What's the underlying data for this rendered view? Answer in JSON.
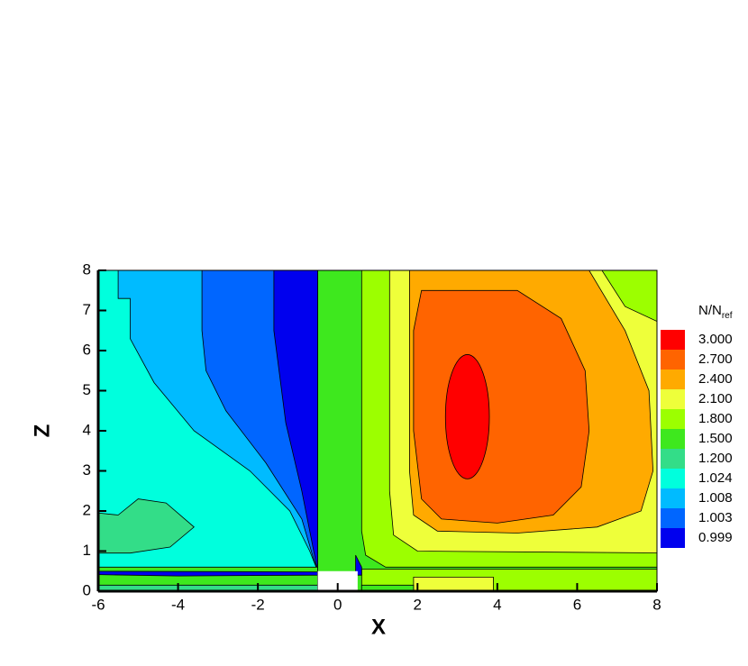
{
  "chart_data": {
    "type": "contour",
    "xlabel": "X",
    "ylabel": "Z",
    "xlim": [
      -6,
      8
    ],
    "ylim": [
      0,
      8
    ],
    "xticks": [
      -6,
      -4,
      -2,
      0,
      2,
      4,
      6,
      8
    ],
    "yticks": [
      0,
      1,
      2,
      3,
      4,
      5,
      6,
      7,
      8
    ],
    "legend": {
      "title": "N/N",
      "title_sub": "ref",
      "position": "right",
      "levels": [
        {
          "value": 3,
          "label": "3.000",
          "color": "#ff0000"
        },
        {
          "value": 2.7,
          "label": "2.700",
          "color": "#ff6400"
        },
        {
          "value": 2.4,
          "label": "2.400",
          "color": "#ffaa00"
        },
        {
          "value": 2.1,
          "label": "2.100",
          "color": "#eeff3a"
        },
        {
          "value": 1.8,
          "label": "1.800",
          "color": "#9cff00"
        },
        {
          "value": 1.5,
          "label": "1.500",
          "color": "#3ee81e"
        },
        {
          "value": 1.2,
          "label": "1.200",
          "color": "#33dd88"
        },
        {
          "value": 1.024,
          "label": "1.024",
          "color": "#00ffdd"
        },
        {
          "value": 1.008,
          "label": "1.008",
          "color": "#00bbff"
        },
        {
          "value": 1.003,
          "label": "1.003",
          "color": "#0066ff"
        },
        {
          "value": 0.999,
          "label": "0.999",
          "color": "#0000ee"
        }
      ]
    }
  }
}
